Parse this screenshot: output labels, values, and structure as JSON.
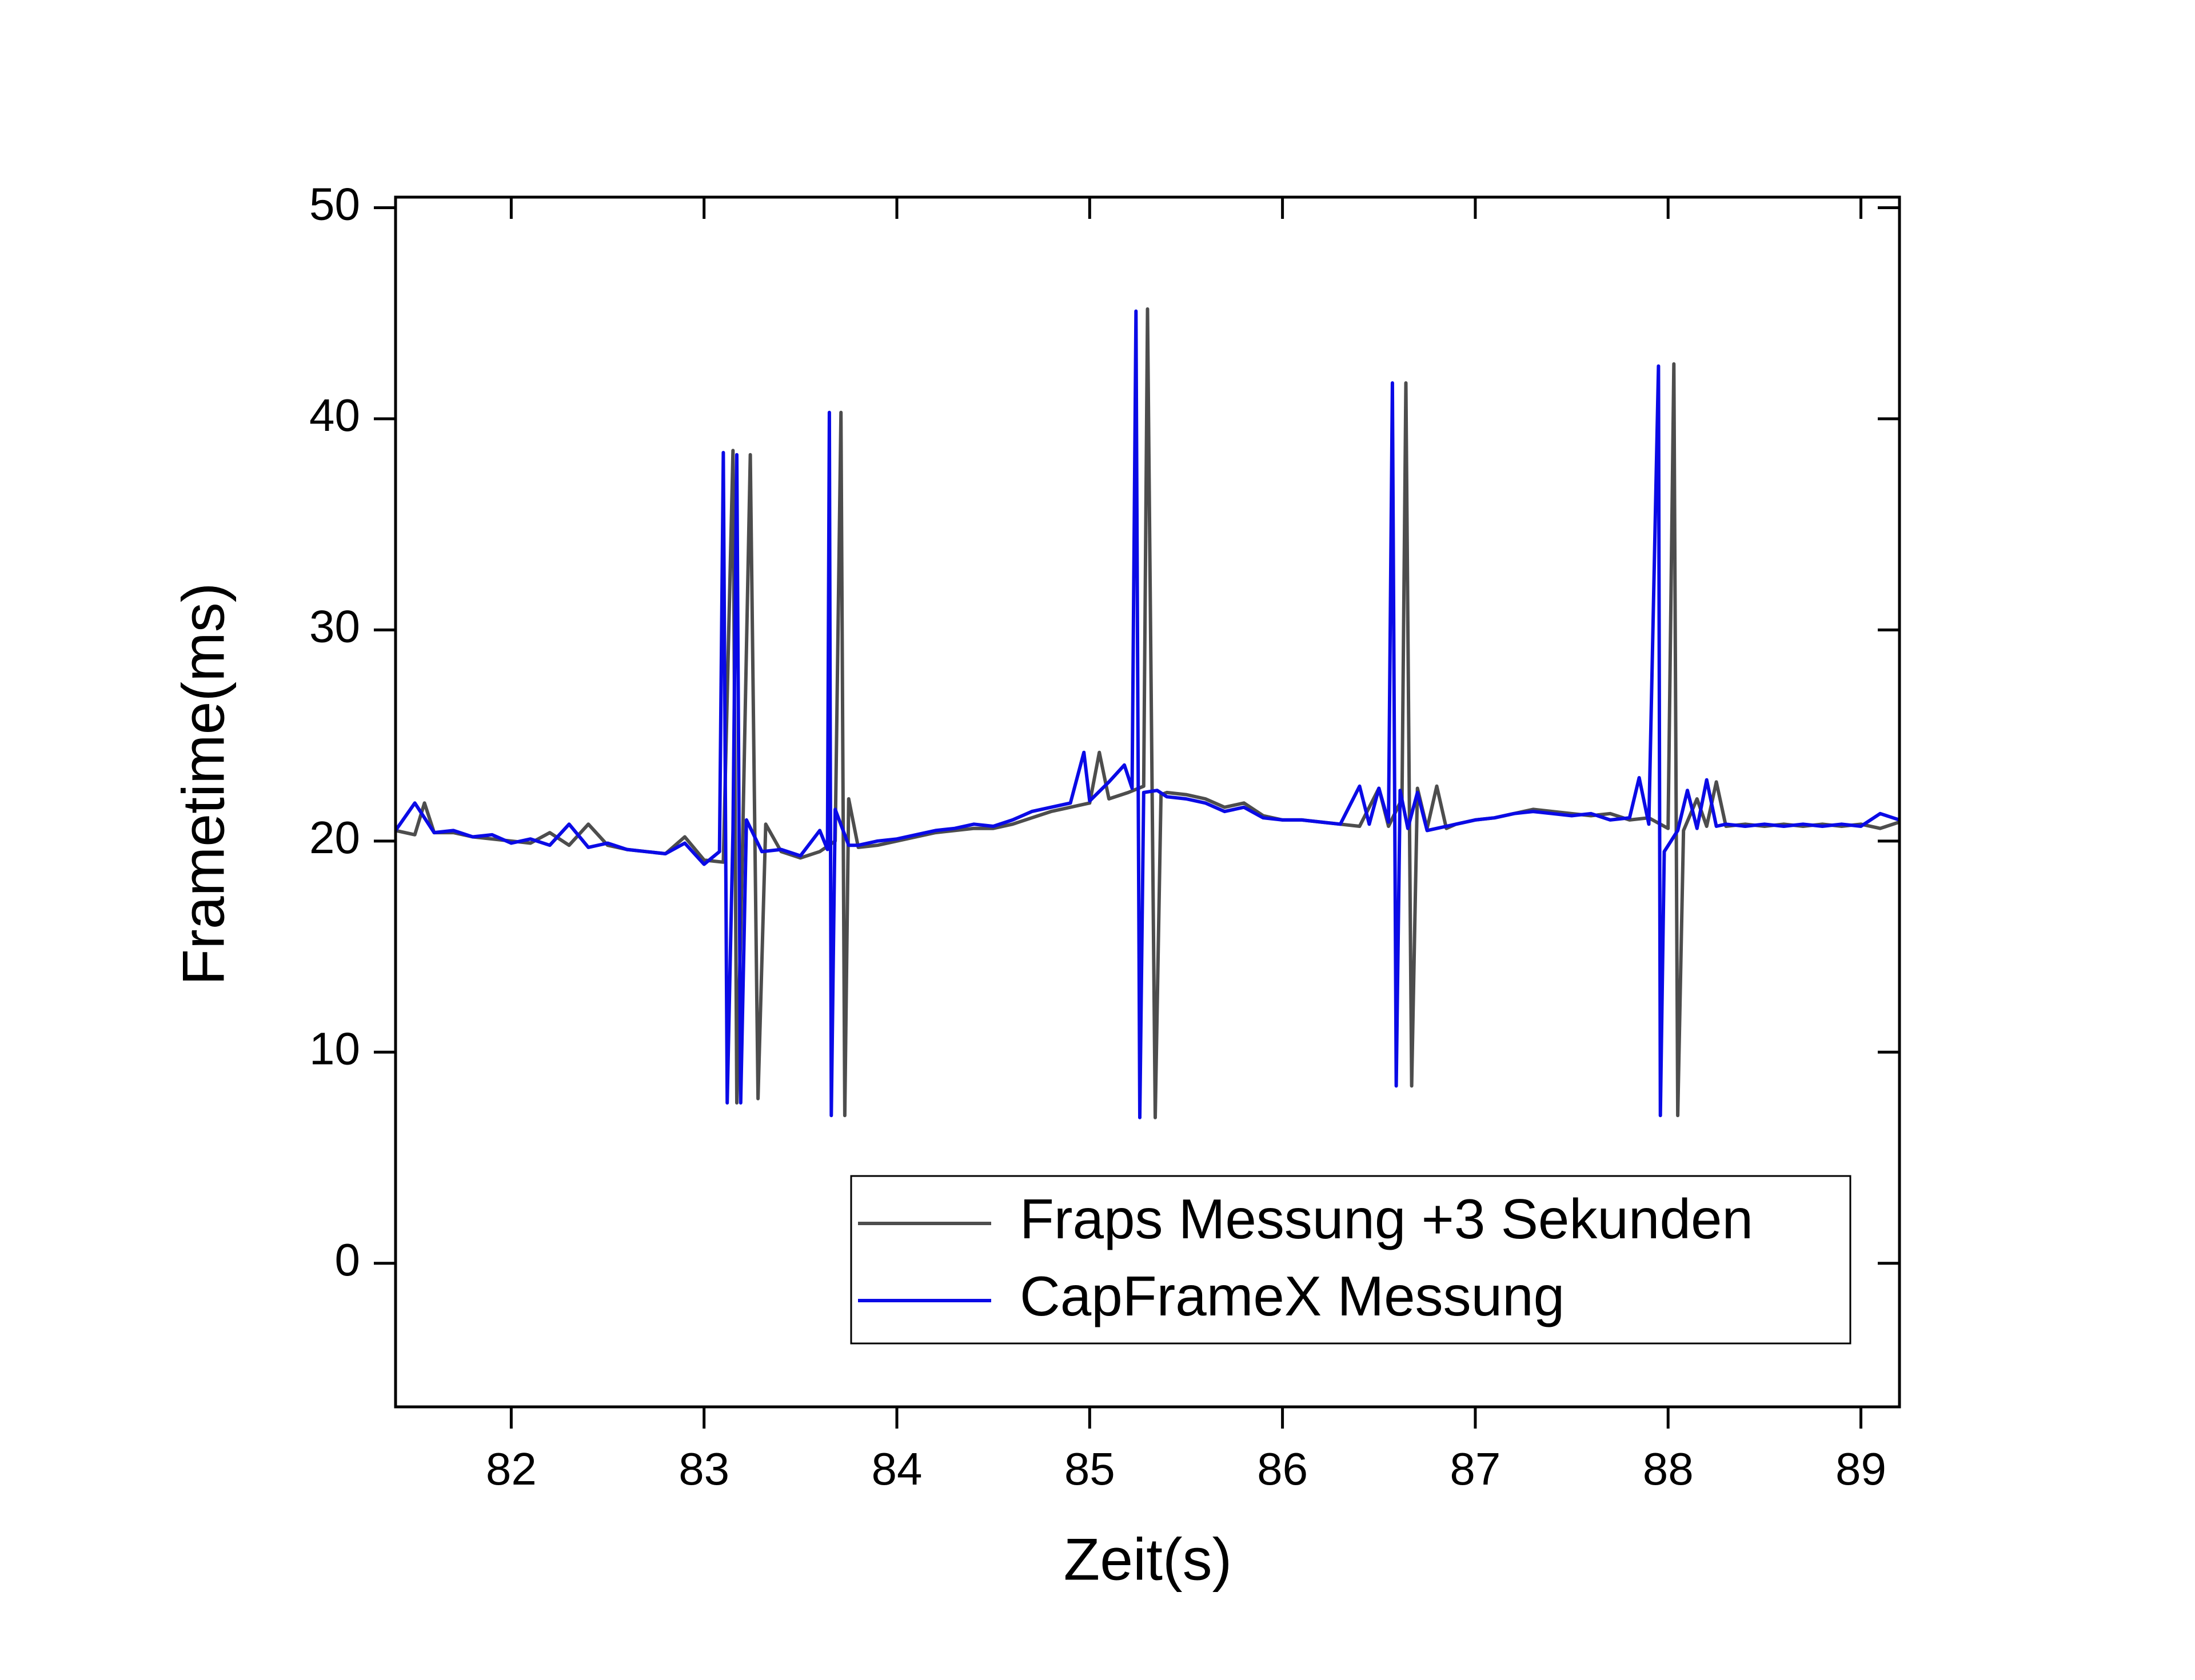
{
  "chart_data": {
    "type": "line",
    "x_label": "Zeit(s)",
    "y_label": "Frametime(ms)",
    "xlim": [
      81.4,
      89.2
    ],
    "ylim": [
      -6.8,
      50.5
    ],
    "xticks": [
      82,
      83,
      84,
      85,
      86,
      87,
      88,
      89
    ],
    "yticks": [
      0,
      10,
      20,
      30,
      40,
      50
    ],
    "legend": "lower right",
    "series": [
      {
        "name": "Fraps Messung +3 Sekunden",
        "color": "#4d4d4d",
        "x": [
          81.4,
          81.5,
          81.55,
          81.6,
          81.7,
          81.8,
          81.9,
          82.0,
          82.1,
          82.2,
          82.3,
          82.4,
          82.5,
          82.6,
          82.7,
          82.8,
          82.9,
          83.0,
          83.1,
          83.15,
          83.17,
          83.2,
          83.24,
          83.28,
          83.32,
          83.4,
          83.5,
          83.6,
          83.68,
          83.71,
          83.73,
          83.75,
          83.8,
          83.9,
          84.0,
          84.1,
          84.2,
          84.3,
          84.4,
          84.5,
          84.6,
          84.7,
          84.8,
          84.9,
          85.0,
          85.05,
          85.1,
          85.2,
          85.28,
          85.3,
          85.34,
          85.37,
          85.4,
          85.5,
          85.6,
          85.7,
          85.8,
          85.9,
          86.0,
          86.1,
          86.2,
          86.3,
          86.4,
          86.5,
          86.55,
          86.62,
          86.64,
          86.67,
          86.7,
          86.75,
          86.8,
          86.85,
          86.9,
          87.0,
          87.1,
          87.2,
          87.3,
          87.4,
          87.5,
          87.6,
          87.7,
          87.8,
          87.9,
          88.0,
          88.03,
          88.05,
          88.08,
          88.15,
          88.2,
          88.25,
          88.3,
          88.4,
          88.5,
          88.6,
          88.7,
          88.8,
          88.9,
          89.0,
          89.1,
          89.2
        ],
        "values": [
          20.5,
          20.3,
          21.8,
          20.4,
          20.4,
          20.2,
          20.1,
          20.0,
          19.9,
          20.4,
          19.8,
          20.8,
          19.8,
          19.6,
          19.5,
          19.4,
          20.2,
          19.1,
          19.0,
          38.5,
          7.6,
          20.0,
          38.3,
          7.8,
          20.8,
          19.5,
          19.2,
          19.5,
          20.0,
          40.3,
          7.0,
          22.0,
          19.7,
          19.8,
          20.0,
          20.2,
          20.4,
          20.5,
          20.6,
          20.6,
          20.8,
          21.1,
          21.4,
          21.6,
          21.8,
          24.2,
          22.0,
          22.3,
          22.6,
          45.2,
          6.9,
          22.2,
          22.3,
          22.2,
          22.0,
          21.6,
          21.8,
          21.2,
          21.0,
          21.0,
          20.9,
          20.8,
          20.7,
          22.5,
          20.7,
          22.0,
          41.7,
          8.4,
          22.5,
          20.6,
          22.6,
          20.6,
          20.8,
          21.0,
          21.1,
          21.3,
          21.5,
          21.4,
          21.3,
          21.2,
          21.3,
          21.0,
          21.1,
          20.6,
          42.6,
          7.0,
          20.5,
          22.0,
          20.7,
          22.8,
          20.7,
          20.8,
          20.7,
          20.8,
          20.7,
          20.8,
          20.7,
          20.8,
          20.6,
          20.9
        ]
      },
      {
        "name": "CapFrameX Messung",
        "color": "#0a0ae6",
        "x": [
          81.4,
          81.5,
          81.6,
          81.7,
          81.8,
          81.9,
          82.0,
          82.1,
          82.2,
          82.3,
          82.4,
          82.5,
          82.6,
          82.7,
          82.8,
          82.9,
          83.0,
          83.08,
          83.1,
          83.12,
          83.15,
          83.17,
          83.19,
          83.22,
          83.3,
          83.4,
          83.5,
          83.6,
          83.64,
          83.65,
          83.66,
          83.68,
          83.75,
          83.8,
          83.9,
          84.0,
          84.1,
          84.2,
          84.3,
          84.4,
          84.5,
          84.6,
          84.7,
          84.8,
          84.9,
          84.97,
          85.0,
          85.1,
          85.18,
          85.22,
          85.24,
          85.26,
          85.28,
          85.35,
          85.4,
          85.5,
          85.6,
          85.7,
          85.8,
          85.9,
          86.0,
          86.1,
          86.2,
          86.3,
          86.4,
          86.45,
          86.5,
          86.55,
          86.57,
          86.59,
          86.61,
          86.65,
          86.7,
          86.75,
          86.8,
          86.9,
          87.0,
          87.1,
          87.2,
          87.3,
          87.4,
          87.5,
          87.6,
          87.7,
          87.8,
          87.85,
          87.9,
          87.95,
          87.96,
          87.98,
          88.05,
          88.1,
          88.15,
          88.2,
          88.25,
          88.3,
          88.4,
          88.5,
          88.6,
          88.7,
          88.8,
          88.9,
          89.0,
          89.1,
          89.2
        ],
        "values": [
          20.5,
          21.8,
          20.4,
          20.5,
          20.2,
          20.3,
          19.9,
          20.1,
          19.8,
          20.8,
          19.7,
          19.9,
          19.6,
          19.5,
          19.4,
          19.9,
          18.9,
          19.5,
          38.4,
          7.6,
          20.5,
          38.3,
          7.6,
          21.0,
          19.5,
          19.6,
          19.3,
          20.5,
          19.6,
          40.3,
          7.0,
          21.5,
          19.8,
          19.8,
          20.0,
          20.1,
          20.3,
          20.5,
          20.6,
          20.8,
          20.7,
          21.0,
          21.4,
          21.6,
          21.8,
          24.2,
          21.9,
          22.8,
          23.6,
          22.5,
          45.1,
          6.9,
          22.3,
          22.4,
          22.1,
          22.0,
          21.8,
          21.4,
          21.6,
          21.1,
          21.0,
          21.0,
          20.9,
          20.8,
          22.6,
          20.8,
          22.5,
          20.9,
          41.7,
          8.4,
          22.4,
          20.6,
          22.3,
          20.5,
          20.6,
          20.8,
          21.0,
          21.1,
          21.3,
          21.4,
          21.3,
          21.2,
          21.3,
          21.0,
          21.1,
          23.0,
          20.8,
          42.5,
          7.0,
          19.5,
          20.5,
          22.4,
          20.6,
          22.9,
          20.7,
          20.8,
          20.7,
          20.8,
          20.7,
          20.8,
          20.7,
          20.8,
          20.7,
          21.3,
          21.0
        ]
      }
    ]
  }
}
